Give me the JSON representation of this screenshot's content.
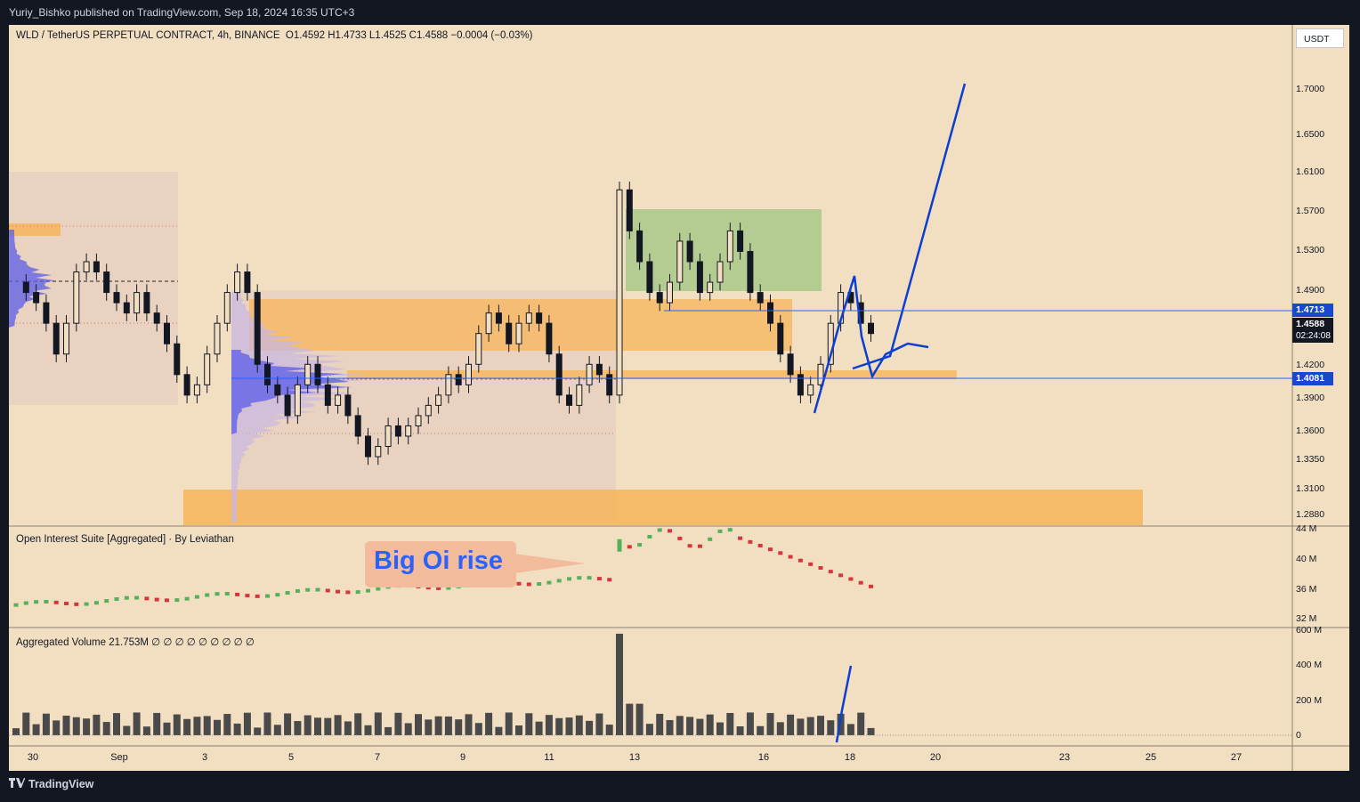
{
  "header": {
    "publisher": "Yuriy_Bishko published on TradingView.com, Sep 18, 2024 16:35 UTC+3"
  },
  "symbol": {
    "name": "WLD / TetherUS PERPETUAL CONTRACT, 4h, BINANCE",
    "ohlc": "O1.4592  H1.4733  L1.4525  C1.4588  −0.0004 (−0.03%)"
  },
  "currency_button": "USDT",
  "price_axis": {
    "ticks": [
      "1.7000",
      "1.6500",
      "1.6100",
      "1.5700",
      "1.5300",
      "1.4900",
      "1.4200",
      "1.3900",
      "1.3600",
      "1.3350",
      "1.3100",
      "1.2880"
    ],
    "tag_upper": "1.4713",
    "tag_current": "1.4588",
    "tag_countdown": "02:24:08",
    "tag_lower": "1.4081"
  },
  "oi_pane": {
    "title": "Open Interest Suite [Aggregated] · By Leviathan",
    "ticks": [
      "44 M",
      "40 M",
      "36 M",
      "32 M"
    ]
  },
  "volume_pane": {
    "title": "Aggregated Volume  21.753M  ∅  ∅  ∅  ∅  ∅  ∅  ∅  ∅  ∅",
    "ticks": [
      "600 M",
      "400 M",
      "200 M",
      "0"
    ]
  },
  "time_axis": [
    "30",
    "Sep",
    "3",
    "5",
    "7",
    "9",
    "11",
    "13",
    "16",
    "18",
    "20",
    "23",
    "25",
    "27"
  ],
  "annotation": {
    "text": "Big Oi rise"
  },
  "footer": {
    "brand": "TradingView"
  },
  "colors": {
    "background": "#f2dfc2",
    "up_candle": "#f2dfc2",
    "down_candle": "#131722",
    "zone_orange": "#f7b559",
    "zone_green": "#a9c98a",
    "volume_profile": "#5b5ce8",
    "drawing_blue": "#0b3fd1",
    "oi_up": "#56b05a",
    "oi_down": "#d8343c",
    "price_tag_blue": "#1848cc"
  }
}
